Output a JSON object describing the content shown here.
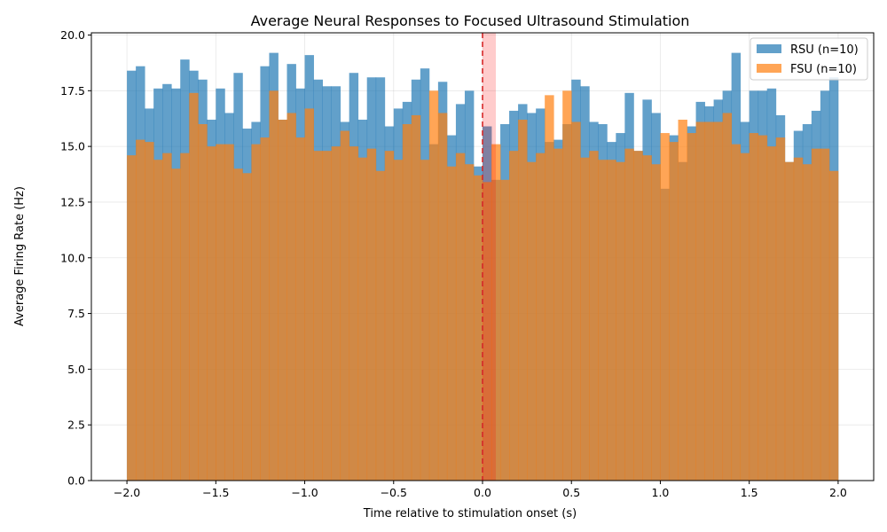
{
  "chart_data": {
    "type": "bar",
    "title": "Average Neural Responses to Focused Ultrasound Stimulation",
    "xlabel": "Time relative to stimulation onset (s)",
    "ylabel": "Average Firing Rate (Hz)",
    "xlim": [
      -2.2,
      2.2
    ],
    "ylim": [
      0.0,
      20.1
    ],
    "x_ticks": [
      -2.0,
      -1.5,
      -1.0,
      -0.5,
      0.0,
      0.5,
      1.0,
      1.5,
      2.0
    ],
    "x_tick_labels": [
      "−2.0",
      "−1.5",
      "−1.0",
      "−0.5",
      "0.0",
      "0.5",
      "1.0",
      "1.5",
      "2.0"
    ],
    "y_ticks": [
      0.0,
      2.5,
      5.0,
      7.5,
      10.0,
      12.5,
      15.0,
      17.5,
      20.0
    ],
    "y_tick_labels": [
      "0.0",
      "2.5",
      "5.0",
      "7.5",
      "10.0",
      "12.5",
      "15.0",
      "17.5",
      "20.0"
    ],
    "grid": true,
    "legend_position": "top-right",
    "bin_start": -2.0,
    "bin_width": 0.05,
    "stimulus_onset": 0.0,
    "stimulus_window": [
      0.0,
      0.075
    ],
    "series": [
      {
        "name": "RSU (n=10)",
        "color": "#1f77b4",
        "values": [
          18.4,
          18.6,
          16.7,
          17.6,
          17.8,
          17.6,
          18.9,
          18.4,
          18.0,
          16.2,
          17.6,
          16.5,
          18.3,
          15.8,
          16.1,
          18.6,
          19.2,
          16.2,
          18.7,
          17.6,
          19.1,
          18.0,
          17.7,
          17.7,
          16.1,
          18.3,
          16.2,
          18.1,
          18.1,
          15.9,
          16.7,
          17.0,
          18.0,
          18.5,
          15.1,
          17.9,
          15.5,
          16.9,
          17.5,
          14.1,
          15.9,
          13.5,
          16.0,
          16.6,
          16.9,
          16.5,
          16.7,
          15.2,
          15.3,
          16.0,
          18.0,
          17.7,
          16.1,
          16.0,
          15.2,
          15.6,
          17.4,
          14.8,
          17.1,
          16.5,
          13.1,
          15.5,
          14.3,
          15.9,
          17.0,
          16.8,
          17.1,
          17.5,
          19.2,
          16.1,
          17.5,
          17.5,
          17.6,
          16.4,
          14.3,
          15.7,
          16.0,
          16.6,
          17.5,
          18.1
        ]
      },
      {
        "name": "FSU (n=10)",
        "color": "#ff7f0e",
        "values": [
          14.6,
          15.3,
          15.2,
          14.4,
          14.7,
          14.0,
          14.7,
          17.4,
          16.0,
          15.0,
          15.1,
          15.1,
          14.0,
          13.8,
          15.1,
          15.4,
          17.5,
          16.2,
          16.5,
          15.4,
          16.7,
          14.8,
          14.8,
          15.0,
          15.7,
          15.0,
          14.5,
          14.9,
          13.9,
          14.8,
          14.4,
          16.0,
          16.4,
          14.4,
          17.5,
          16.5,
          14.1,
          14.7,
          14.2,
          13.7,
          13.4,
          15.1,
          13.5,
          14.8,
          16.2,
          14.3,
          14.7,
          17.3,
          14.9,
          17.5,
          16.1,
          14.5,
          14.8,
          14.4,
          14.4,
          14.3,
          14.9,
          14.8,
          14.6,
          14.2,
          15.6,
          15.2,
          16.2,
          15.6,
          16.1,
          16.1,
          16.1,
          16.5,
          15.1,
          14.7,
          15.6,
          15.5,
          15.0,
          15.4,
          14.3,
          14.5,
          14.2,
          14.9,
          14.9,
          13.9
        ]
      }
    ]
  }
}
